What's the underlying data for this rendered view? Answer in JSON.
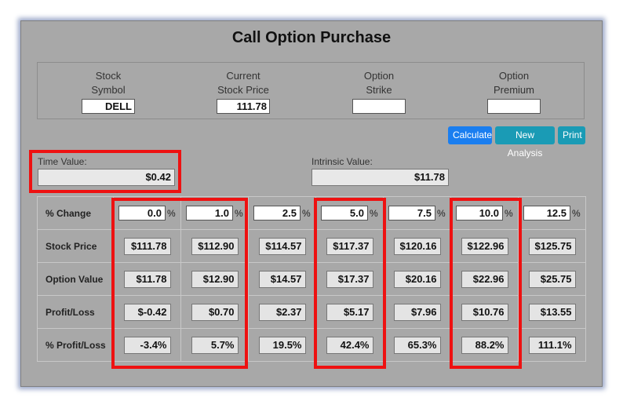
{
  "title": "Call Option Purchase",
  "inputs": [
    {
      "label1": "Stock",
      "label2": "Symbol",
      "value": "DELL"
    },
    {
      "label1": "Current",
      "label2": "Stock Price",
      "value": "111.78"
    },
    {
      "label1": "Option",
      "label2": "Strike",
      "value": ""
    },
    {
      "label1": "Option",
      "label2": "Premium",
      "value": ""
    }
  ],
  "buttons": {
    "calculate": "Calculate",
    "new_analysis": "New Analysis",
    "print": "Print"
  },
  "time_value": {
    "label": "Time Value:",
    "value": "$0.42"
  },
  "intrinsic_value": {
    "label": "Intrinsic Value:",
    "value": "$11.78"
  },
  "grid": {
    "pct_sign": "%",
    "row_labels": [
      "% Change",
      "Stock Price",
      "Option Value",
      "Profit/Loss",
      "% Profit/Loss"
    ],
    "pct_change": [
      "0.0",
      "1.0",
      "2.5",
      "5.0",
      "7.5",
      "10.0",
      "12.5"
    ],
    "stock_price": [
      "$111.78",
      "$112.90",
      "$114.57",
      "$117.37",
      "$120.16",
      "$122.96",
      "$125.75"
    ],
    "option_value": [
      "$11.78",
      "$12.90",
      "$14.57",
      "$17.37",
      "$20.16",
      "$22.96",
      "$25.75"
    ],
    "profit_loss": [
      "$-0.42",
      "$0.70",
      "$2.37",
      "$5.17",
      "$7.96",
      "$10.76",
      "$13.55"
    ],
    "pct_profit_loss": [
      "-3.4%",
      "5.7%",
      "19.5%",
      "42.4%",
      "65.3%",
      "88.2%",
      "111.1%"
    ]
  },
  "colors": {
    "highlight": "#ee1111",
    "calculate_button": "#1a7ef0",
    "other_buttons": "#1a9bb5"
  }
}
